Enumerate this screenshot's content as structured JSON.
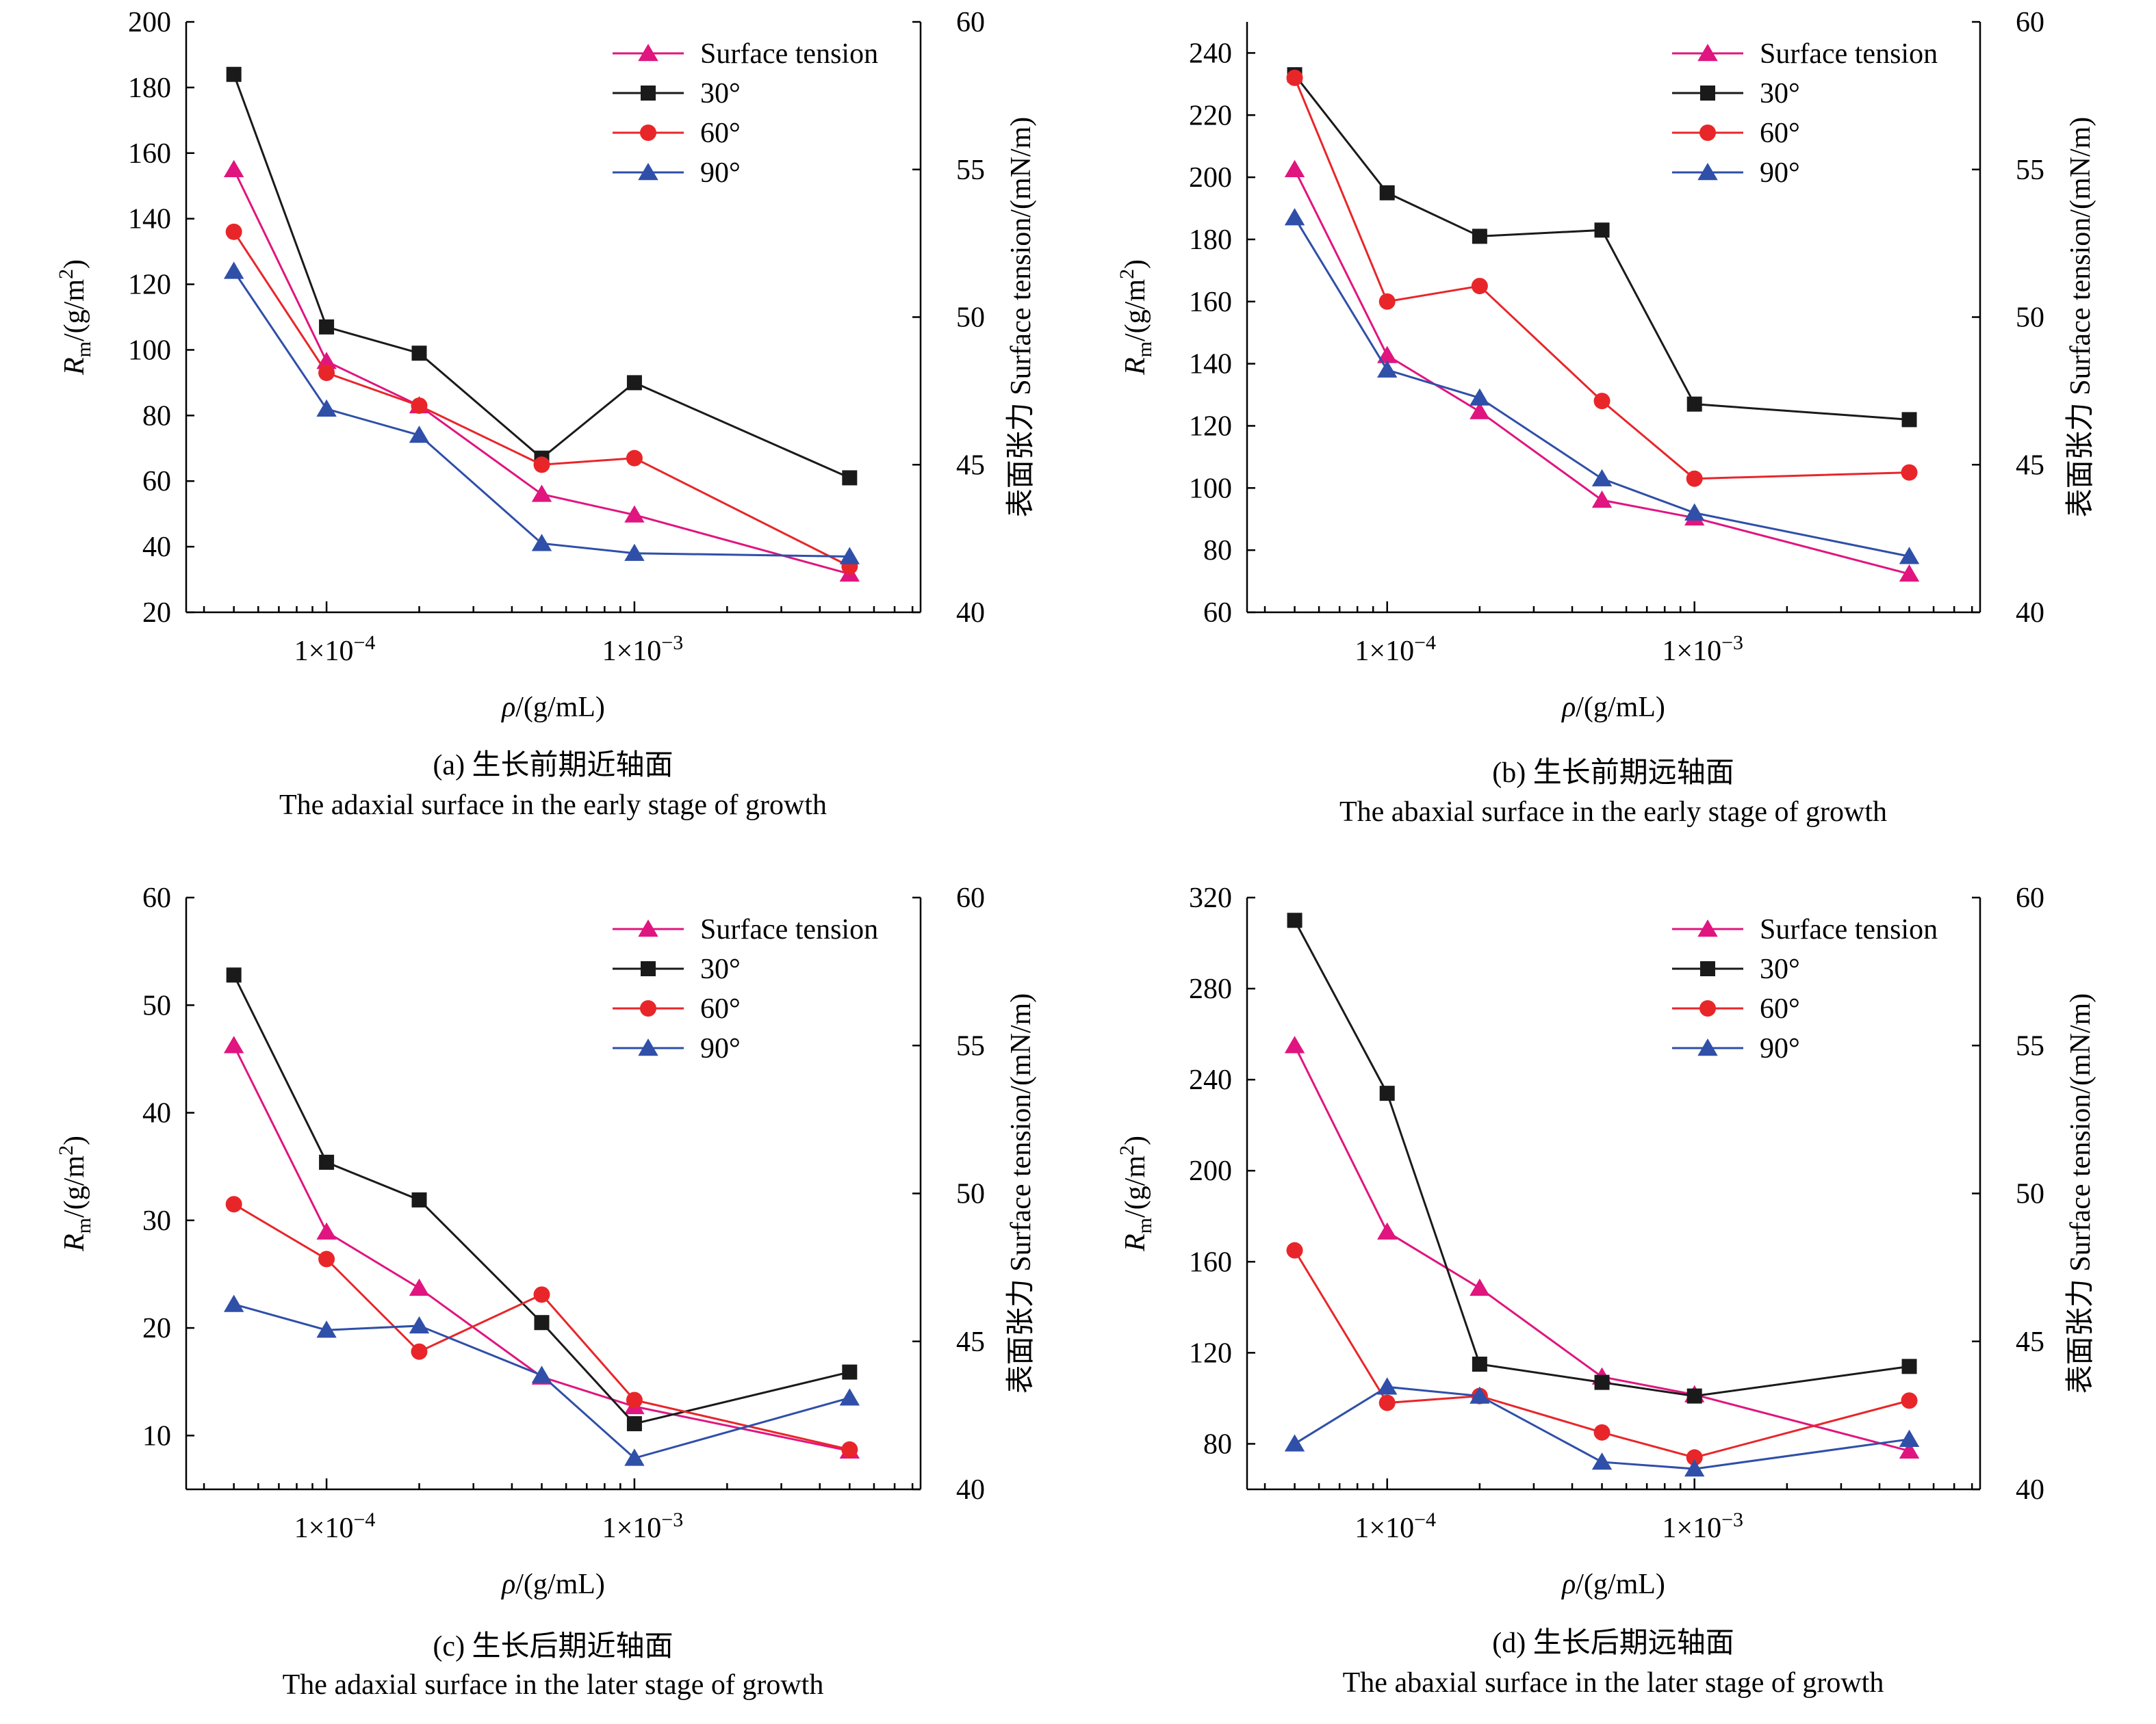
{
  "chart_data": [
    {
      "type": "line",
      "caption_cn": "(a) 生长前期近轴面",
      "caption_en": "The adaxial surface in the early stage of growth",
      "xlabel_sym": "ρ",
      "xlabel_unit": "/(g/mL)",
      "ylabel_sym": "R",
      "ylabel_sub": "m",
      "ylabel_unit": "/(g/m",
      "ylabel_sup": "2",
      "ylabel_close": ")",
      "y2label": "表面张力 Surface tension/(mN/m)",
      "xscale": "log",
      "xlim": [
        3.5e-05,
        0.0085
      ],
      "ylim": [
        20,
        200
      ],
      "yticks": [
        "20",
        "40",
        "60",
        "80",
        "100",
        "120",
        "140",
        "160",
        "180",
        "200"
      ],
      "y2lim": [
        40,
        60
      ],
      "y2ticks": [
        "40",
        "45",
        "50",
        "55",
        "60"
      ],
      "xticks": [
        {
          "value": 0.0001,
          "mant": "1×10",
          "exp": "−4"
        },
        {
          "value": 0.001,
          "mant": "1×10",
          "exp": "−3"
        }
      ],
      "x": [
        5e-05,
        0.0001,
        0.0002,
        0.0005,
        0.001,
        0.005
      ],
      "legend_position": "top-right",
      "series": [
        {
          "name": "Surface tension",
          "axis": "right",
          "color": "#e0157f",
          "marker": "triangle",
          "values": [
            55.0,
            48.5,
            47.0,
            44.0,
            43.3,
            41.3
          ]
        },
        {
          "name": "30°",
          "axis": "left",
          "color": "#1a1a1a",
          "marker": "square",
          "values": [
            184,
            107,
            99,
            67,
            90,
            61
          ]
        },
        {
          "name": "60°",
          "axis": "left",
          "color": "#e8262a",
          "marker": "circle",
          "values": [
            136,
            93,
            83,
            65,
            67,
            34
          ]
        },
        {
          "name": "90°",
          "axis": "left",
          "color": "#2f4fa8",
          "marker": "triangle",
          "values": [
            124,
            82,
            74,
            41,
            38,
            37
          ]
        }
      ]
    },
    {
      "type": "line",
      "caption_cn": "(b) 生长前期远轴面",
      "caption_en": "The abaxial surface in the early stage of growth",
      "xlabel_sym": "ρ",
      "xlabel_unit": "/(g/mL)",
      "ylabel_sym": "R",
      "ylabel_sub": "m",
      "ylabel_unit": "/(g/m",
      "ylabel_sup": "2",
      "ylabel_close": ")",
      "y2label": "表面张力 Surface tension/(mN/m)",
      "xscale": "log",
      "xlim": [
        3.5e-05,
        0.0085
      ],
      "ylim": [
        60,
        250
      ],
      "yticks": [
        "60",
        "80",
        "100",
        "120",
        "140",
        "160",
        "180",
        "200",
        "220",
        "240"
      ],
      "y2lim": [
        40,
        60
      ],
      "y2ticks": [
        "40",
        "45",
        "50",
        "55",
        "60"
      ],
      "xticks": [
        {
          "value": 0.0001,
          "mant": "1×10",
          "exp": "−4"
        },
        {
          "value": 0.001,
          "mant": "1×10",
          "exp": "−3"
        }
      ],
      "x": [
        5e-05,
        0.0001,
        0.0002,
        0.0005,
        0.001,
        0.005
      ],
      "legend_position": "top-right",
      "series": [
        {
          "name": "Surface tension",
          "axis": "right",
          "color": "#e0157f",
          "marker": "triangle",
          "values": [
            55.0,
            48.7,
            46.8,
            43.8,
            43.2,
            41.3
          ]
        },
        {
          "name": "30°",
          "axis": "left",
          "color": "#1a1a1a",
          "marker": "square",
          "values": [
            233,
            195,
            181,
            183,
            127,
            122
          ]
        },
        {
          "name": "60°",
          "axis": "left",
          "color": "#e8262a",
          "marker": "circle",
          "values": [
            232,
            160,
            165,
            128,
            103,
            105
          ]
        },
        {
          "name": "90°",
          "axis": "left",
          "color": "#2f4fa8",
          "marker": "triangle",
          "values": [
            187,
            138,
            129,
            103,
            92,
            78
          ]
        }
      ]
    },
    {
      "type": "line",
      "caption_cn": "(c) 生长后期近轴面",
      "caption_en": "The adaxial surface in the later stage of growth",
      "xlabel_sym": "ρ",
      "xlabel_unit": "/(g/mL)",
      "ylabel_sym": "R",
      "ylabel_sub": "m",
      "ylabel_unit": "/(g/m",
      "ylabel_sup": "2",
      "ylabel_close": ")",
      "y2label": "表面张力 Surface tension/(mN/m)",
      "xscale": "log",
      "xlim": [
        3.5e-05,
        0.0085
      ],
      "ylim": [
        5,
        60
      ],
      "yticks": [
        "10",
        "20",
        "30",
        "40",
        "50",
        "60"
      ],
      "y2lim": [
        40,
        60
      ],
      "y2ticks": [
        "40",
        "45",
        "50",
        "55",
        "60"
      ],
      "xticks": [
        {
          "value": 0.0001,
          "mant": "1×10",
          "exp": "−4"
        },
        {
          "value": 0.001,
          "mant": "1×10",
          "exp": "−3"
        }
      ],
      "x": [
        5e-05,
        0.0001,
        0.0002,
        0.0005,
        0.001,
        0.005
      ],
      "legend_position": "top-right",
      "series": [
        {
          "name": "Surface tension",
          "axis": "right",
          "color": "#e0157f",
          "marker": "triangle",
          "values": [
            55.0,
            48.7,
            46.8,
            43.8,
            42.8,
            41.3
          ]
        },
        {
          "name": "30°",
          "axis": "left",
          "color": "#1a1a1a",
          "marker": "square",
          "values": [
            52.8,
            35.4,
            31.9,
            20.5,
            11.1,
            15.9
          ]
        },
        {
          "name": "60°",
          "axis": "left",
          "color": "#e8262a",
          "marker": "circle",
          "values": [
            31.5,
            26.4,
            17.8,
            23.1,
            13.3,
            8.7
          ]
        },
        {
          "name": "90°",
          "axis": "left",
          "color": "#2f4fa8",
          "marker": "triangle",
          "values": [
            22.2,
            19.8,
            20.2,
            15.6,
            7.9,
            13.5
          ]
        }
      ]
    },
    {
      "type": "line",
      "caption_cn": "(d) 生长后期远轴面",
      "caption_en": "The abaxial surface in the later stage of growth",
      "xlabel_sym": "ρ",
      "xlabel_unit": "/(g/mL)",
      "ylabel_sym": "R",
      "ylabel_sub": "m",
      "ylabel_unit": "/(g/m",
      "ylabel_sup": "2",
      "ylabel_close": ")",
      "y2label": "表面张力 Surface tension/(mN/m)",
      "xscale": "log",
      "xlim": [
        3.5e-05,
        0.0085
      ],
      "ylim": [
        60,
        320
      ],
      "yticks": [
        "80",
        "120",
        "160",
        "200",
        "240",
        "280",
        "320"
      ],
      "y2lim": [
        40,
        60
      ],
      "y2ticks": [
        "40",
        "45",
        "50",
        "55",
        "60"
      ],
      "xticks": [
        {
          "value": 0.0001,
          "mant": "1×10",
          "exp": "−4"
        },
        {
          "value": 0.001,
          "mant": "1×10",
          "exp": "−3"
        }
      ],
      "x": [
        5e-05,
        0.0001,
        0.0002,
        0.0005,
        0.001,
        0.005
      ],
      "legend_position": "top-right",
      "series": [
        {
          "name": "Surface tension",
          "axis": "right",
          "color": "#e0157f",
          "marker": "triangle",
          "values": [
            55.0,
            48.7,
            46.8,
            43.8,
            43.2,
            41.3
          ]
        },
        {
          "name": "30°",
          "axis": "left",
          "color": "#1a1a1a",
          "marker": "square",
          "values": [
            310,
            234,
            115,
            107,
            101,
            114
          ]
        },
        {
          "name": "60°",
          "axis": "left",
          "color": "#e8262a",
          "marker": "circle",
          "values": [
            165,
            98,
            101,
            85,
            74,
            99
          ]
        },
        {
          "name": "90°",
          "axis": "left",
          "color": "#2f4fa8",
          "marker": "triangle",
          "values": [
            80,
            105,
            101,
            72,
            69,
            82
          ]
        }
      ]
    }
  ]
}
